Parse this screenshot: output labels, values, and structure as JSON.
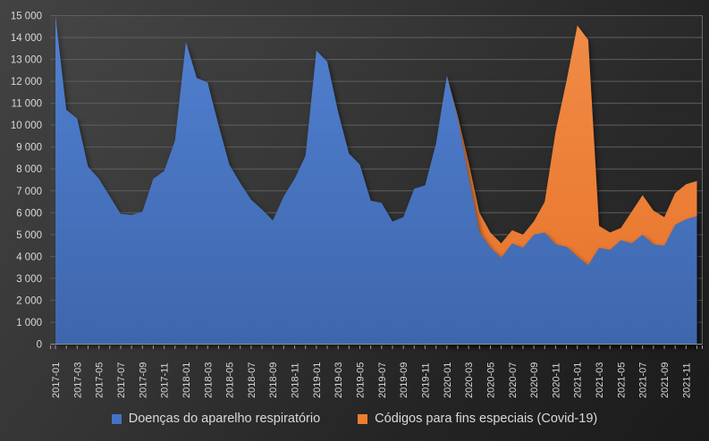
{
  "chart_data": {
    "type": "area",
    "stacked": true,
    "title": "",
    "xlabel": "",
    "ylabel": "",
    "grid": true,
    "legend_position": "bottom",
    "background_style": "dark-gradient",
    "categories": [
      "2017-01",
      "2017-02",
      "2017-03",
      "2017-04",
      "2017-05",
      "2017-06",
      "2017-07",
      "2017-08",
      "2017-09",
      "2017-10",
      "2017-11",
      "2017-12",
      "2018-01",
      "2018-02",
      "2018-03",
      "2018-04",
      "2018-05",
      "2018-06",
      "2018-07",
      "2018-08",
      "2018-09",
      "2018-10",
      "2018-11",
      "2018-12",
      "2019-01",
      "2019-02",
      "2019-03",
      "2019-04",
      "2019-05",
      "2019-06",
      "2019-07",
      "2019-08",
      "2019-09",
      "2019-10",
      "2019-11",
      "2019-12",
      "2020-01",
      "2020-02",
      "2020-03",
      "2020-04",
      "2020-05",
      "2020-06",
      "2020-07",
      "2020-08",
      "2020-09",
      "2020-10",
      "2020-11",
      "2020-12",
      "2021-01",
      "2021-02",
      "2021-03",
      "2021-04",
      "2021-05",
      "2021-06",
      "2021-07",
      "2021-08",
      "2021-09",
      "2021-10",
      "2021-11",
      "2021-12"
    ],
    "series": [
      {
        "name": "Doenças do aparelho respiratório",
        "color": "#4472C4",
        "values": [
          15000,
          10700,
          10300,
          8100,
          7550,
          6750,
          5950,
          5900,
          6050,
          7550,
          7900,
          9300,
          13800,
          12150,
          11950,
          10000,
          8200,
          7350,
          6600,
          6150,
          5650,
          6750,
          7550,
          8600,
          13400,
          12900,
          10600,
          8700,
          8200,
          6550,
          6450,
          5600,
          5800,
          7100,
          7250,
          9150,
          12250,
          10300,
          7600,
          5100,
          4400,
          3950,
          4600,
          4400,
          5000,
          5100,
          4550,
          4450,
          4000,
          3600,
          4400,
          4300,
          4750,
          4600,
          5000,
          4550,
          4500,
          5450,
          5700,
          5850
        ]
      },
      {
        "name": "Códigos para fins especiais (Covid-19)",
        "color": "#ED7D31",
        "values": [
          0,
          0,
          0,
          0,
          0,
          0,
          0,
          0,
          0,
          0,
          0,
          0,
          0,
          0,
          0,
          0,
          0,
          0,
          0,
          0,
          0,
          0,
          0,
          0,
          0,
          0,
          0,
          0,
          0,
          0,
          0,
          0,
          0,
          0,
          0,
          0,
          0,
          150,
          700,
          900,
          700,
          650,
          600,
          600,
          600,
          1400,
          5150,
          7550,
          10550,
          10300,
          1000,
          800,
          550,
          1450,
          1800,
          1550,
          1300,
          1450,
          1600,
          1600
        ]
      }
    ],
    "y_axis": {
      "min": 0,
      "max": 15000,
      "step": 1000,
      "tick_labels": [
        "0",
        "1 000",
        "2 000",
        "3 000",
        "4 000",
        "5 000",
        "6 000",
        "7 000",
        "8 000",
        "9 000",
        "10 000",
        "11 000",
        "12 000",
        "13 000",
        "14 000",
        "15 000"
      ]
    },
    "x_axis": {
      "label_interval": 2,
      "label_rotation_deg": -90,
      "first_label": "2017-01",
      "last_label": "2021-11"
    },
    "colors": {
      "axis_text": "#d9d9d9",
      "gridline": "#5f5f5f",
      "tick": "#9a9a9a",
      "axis_line": "#8f8f8f",
      "plot_right_border": "#bdbdbd"
    }
  },
  "legend": {
    "items": [
      {
        "label": "Doenças do aparelho respiratório",
        "color": "#4472C4"
      },
      {
        "label": "Códigos para fins especiais (Covid-19)",
        "color": "#ED7D31"
      }
    ]
  }
}
